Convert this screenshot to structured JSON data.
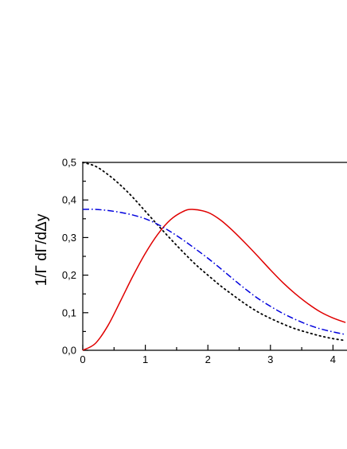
{
  "chart_data": {
    "type": "line",
    "title": "",
    "xlabel": "",
    "ylabel": "1/Γ dΓ/dΔy",
    "xlim": [
      0,
      4.2
    ],
    "ylim": [
      0,
      0.5
    ],
    "x_ticks": [
      "0",
      "1",
      "2",
      "3",
      "4"
    ],
    "y_ticks": [
      "0,0",
      "0,1",
      "0,2",
      "0,3",
      "0,4",
      "0,5"
    ],
    "grid": false,
    "legend": "none",
    "series": [
      {
        "style": "solid",
        "color": "#e00000",
        "x": [
          0,
          0.2,
          0.4,
          0.6,
          0.8,
          1.0,
          1.2,
          1.4,
          1.6,
          1.75,
          2.0,
          2.2,
          2.4,
          2.6,
          2.8,
          3.0,
          3.2,
          3.4,
          3.6,
          3.8,
          4.0,
          4.2
        ],
        "y": [
          0.0,
          0.018,
          0.065,
          0.13,
          0.197,
          0.258,
          0.309,
          0.347,
          0.369,
          0.375,
          0.367,
          0.347,
          0.318,
          0.285,
          0.25,
          0.214,
          0.18,
          0.15,
          0.124,
          0.102,
          0.086,
          0.074
        ]
      },
      {
        "style": "dotted",
        "color": "#000000",
        "x": [
          0,
          0.2,
          0.4,
          0.6,
          0.8,
          1.0,
          1.2,
          1.4,
          1.6,
          1.8,
          2.0,
          2.2,
          2.4,
          2.6,
          2.8,
          3.0,
          3.2,
          3.4,
          3.6,
          3.8,
          4.0,
          4.2
        ],
        "y": [
          0.5,
          0.49,
          0.468,
          0.44,
          0.407,
          0.37,
          0.333,
          0.297,
          0.262,
          0.229,
          0.2,
          0.172,
          0.147,
          0.123,
          0.102,
          0.085,
          0.07,
          0.057,
          0.047,
          0.038,
          0.031,
          0.026
        ]
      },
      {
        "style": "dashdot",
        "color": "#0000dd",
        "x": [
          0,
          0.2,
          0.4,
          0.6,
          0.8,
          1.0,
          1.2,
          1.4,
          1.6,
          1.8,
          2.0,
          2.2,
          2.4,
          2.6,
          2.8,
          3.0,
          3.2,
          3.4,
          3.6,
          3.8,
          4.0,
          4.2
        ],
        "y": [
          0.375,
          0.375,
          0.372,
          0.367,
          0.36,
          0.35,
          0.335,
          0.316,
          0.294,
          0.27,
          0.245,
          0.218,
          0.19,
          0.163,
          0.138,
          0.117,
          0.098,
          0.082,
          0.068,
          0.057,
          0.049,
          0.042
        ]
      }
    ]
  }
}
